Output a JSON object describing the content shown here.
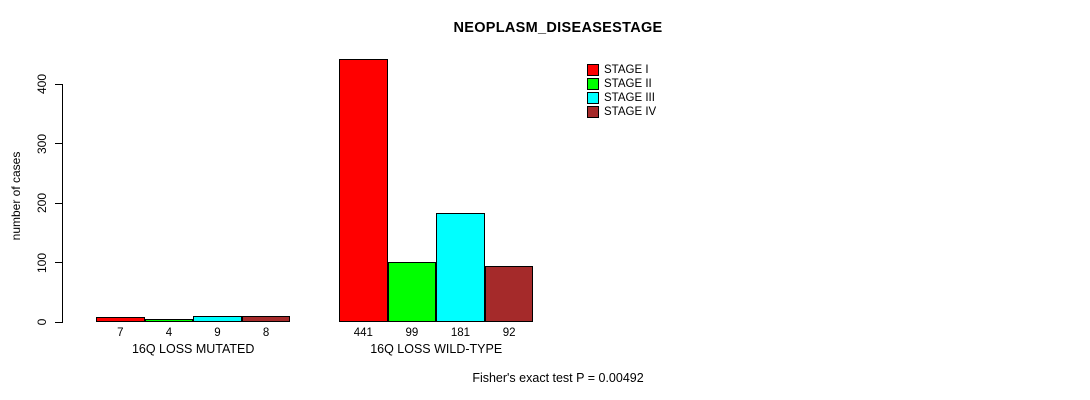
{
  "chart_data": {
    "type": "bar",
    "title": "NEOPLASM_DISEASESTAGE",
    "ylabel": "number of cases",
    "xlabel": "",
    "categories": [
      "16Q LOSS MUTATED",
      "16Q LOSS WILD-TYPE"
    ],
    "series": [
      {
        "name": "STAGE I",
        "color": "#ff0000",
        "values": [
          7,
          441
        ]
      },
      {
        "name": "STAGE II",
        "color": "#00ff00",
        "values": [
          4,
          99
        ]
      },
      {
        "name": "STAGE III",
        "color": "#00ffff",
        "values": [
          9,
          181
        ]
      },
      {
        "name": "STAGE IV",
        "color": "#a52a2a",
        "values": [
          8,
          92
        ]
      }
    ],
    "bar_value_labels_shown": true,
    "ylim": [
      0,
      441
    ],
    "yticks": [
      0,
      100,
      200,
      300,
      400
    ],
    "grid": false,
    "legend_position": "top-right",
    "legend_entries": [
      "STAGE I",
      "STAGE II",
      "STAGE III",
      "STAGE IV"
    ],
    "annotation": "Fisher's exact test P = 0.00492"
  },
  "colors": {
    "background": "#ffffff",
    "text": "#000000",
    "axis": "#000000",
    "bar_border": "#000000"
  }
}
